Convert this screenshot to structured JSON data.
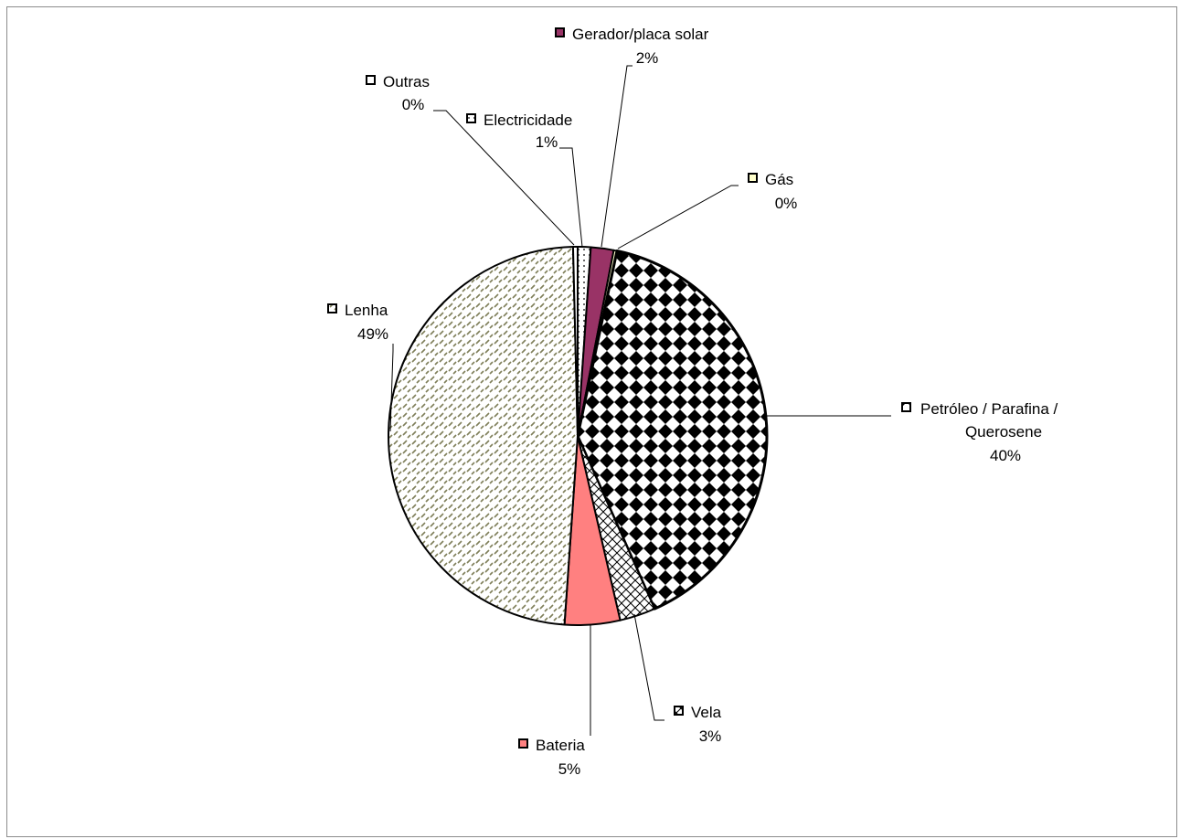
{
  "chart_data": {
    "type": "pie",
    "title": "",
    "slices": [
      {
        "label": "Electricidade",
        "value": 1,
        "display": "1%",
        "color": "#ffffff",
        "pattern": "dots"
      },
      {
        "label": "Gerador/placa solar",
        "value": 2,
        "display": "2%",
        "color": "#993366",
        "pattern": "solid"
      },
      {
        "label": "Gás",
        "value": 0,
        "display": "0%",
        "color": "#ffffcc",
        "pattern": "solid"
      },
      {
        "label": "Petróleo / Parafina / Querosene",
        "value": 40,
        "display": "40%",
        "color": "#000000",
        "pattern": "diamond-check"
      },
      {
        "label": "Vela",
        "value": 3,
        "display": "3%",
        "color": "#000000",
        "pattern": "diagonal-cross"
      },
      {
        "label": "Bateria",
        "value": 5,
        "display": "5%",
        "color": "#ff8080",
        "pattern": "solid"
      },
      {
        "label": "Lenha",
        "value": 49,
        "display": "49%",
        "color": "#7f7f5a",
        "pattern": "dashed-diagonal"
      },
      {
        "label": "Outras",
        "value": 0,
        "display": "0%",
        "color": "#ffffff",
        "pattern": "solid"
      }
    ],
    "legend": "labels-on-slices",
    "label_lines": {
      "Petróleo / Parafina / Querosene": [
        "Petróleo / Parafina /",
        "Querosene"
      ]
    }
  }
}
